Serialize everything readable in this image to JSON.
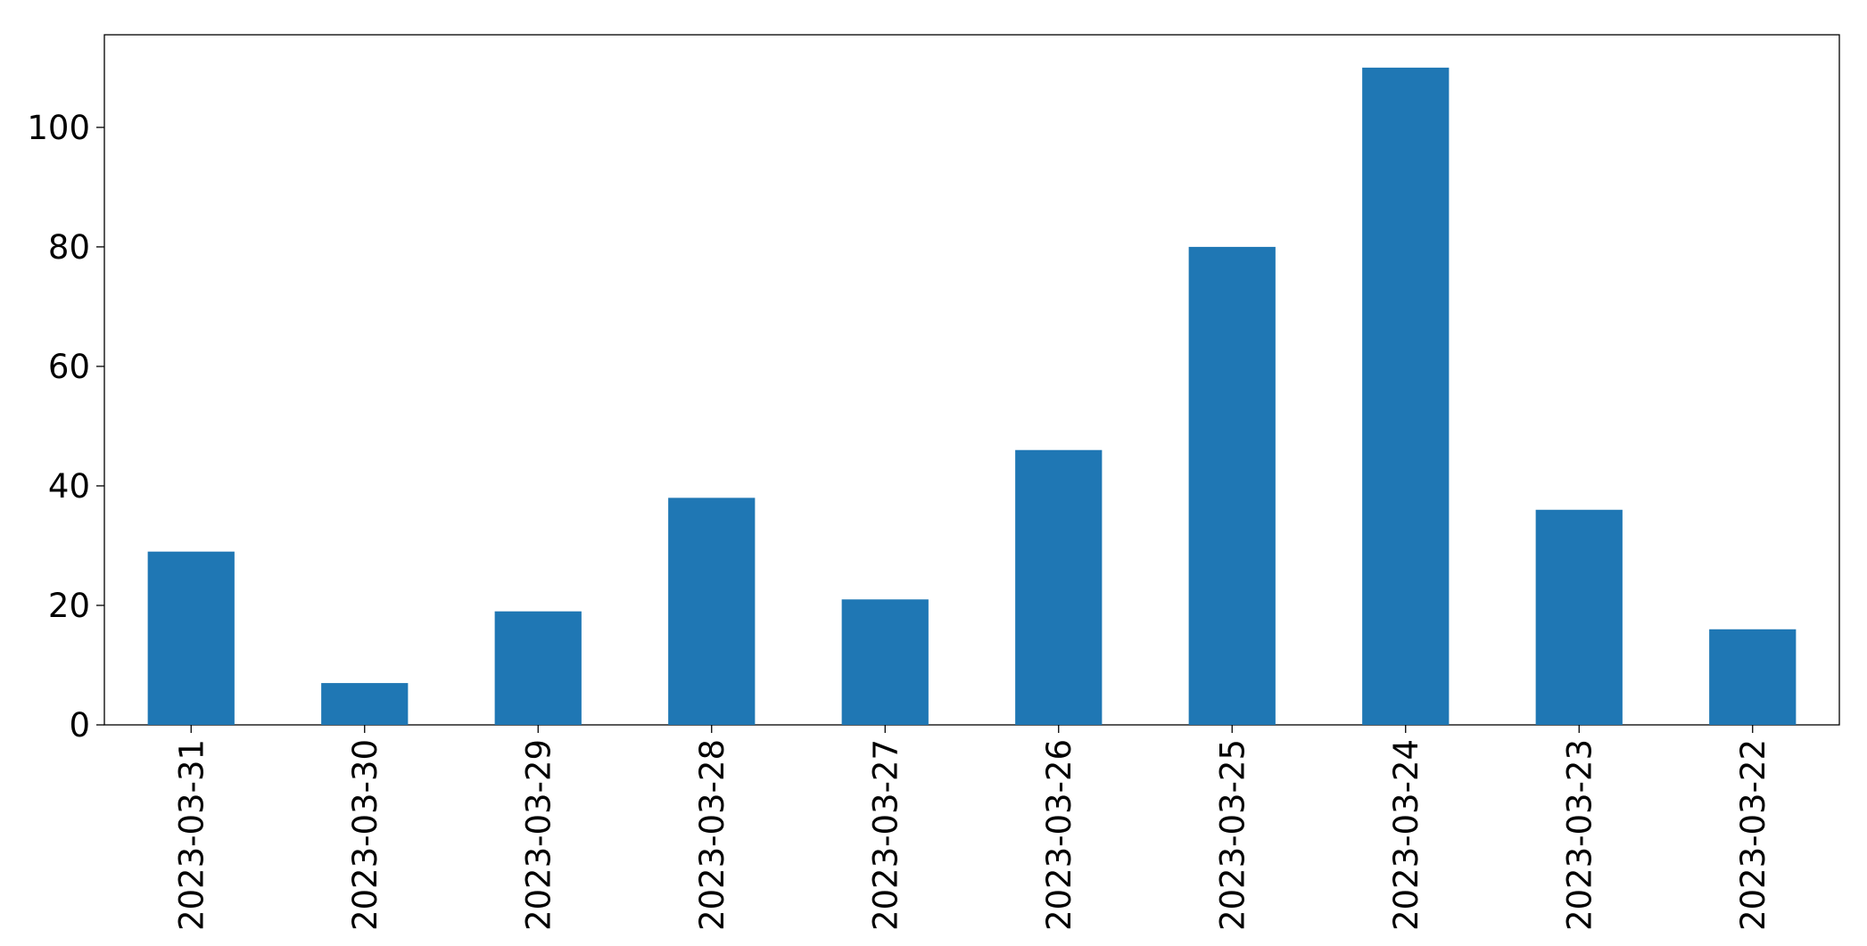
{
  "chart_data": {
    "type": "bar",
    "categories": [
      "2023-03-31",
      "2023-03-30",
      "2023-03-29",
      "2023-03-28",
      "2023-03-27",
      "2023-03-26",
      "2023-03-25",
      "2023-03-24",
      "2023-03-23",
      "2023-03-22"
    ],
    "values": [
      29,
      7,
      19,
      38,
      21,
      46,
      80,
      110,
      36,
      16
    ],
    "color": "#1f77b4",
    "ylim": [
      0,
      115.5
    ],
    "yticks": [
      0,
      20,
      40,
      60,
      80,
      100
    ],
    "grid": false
  }
}
